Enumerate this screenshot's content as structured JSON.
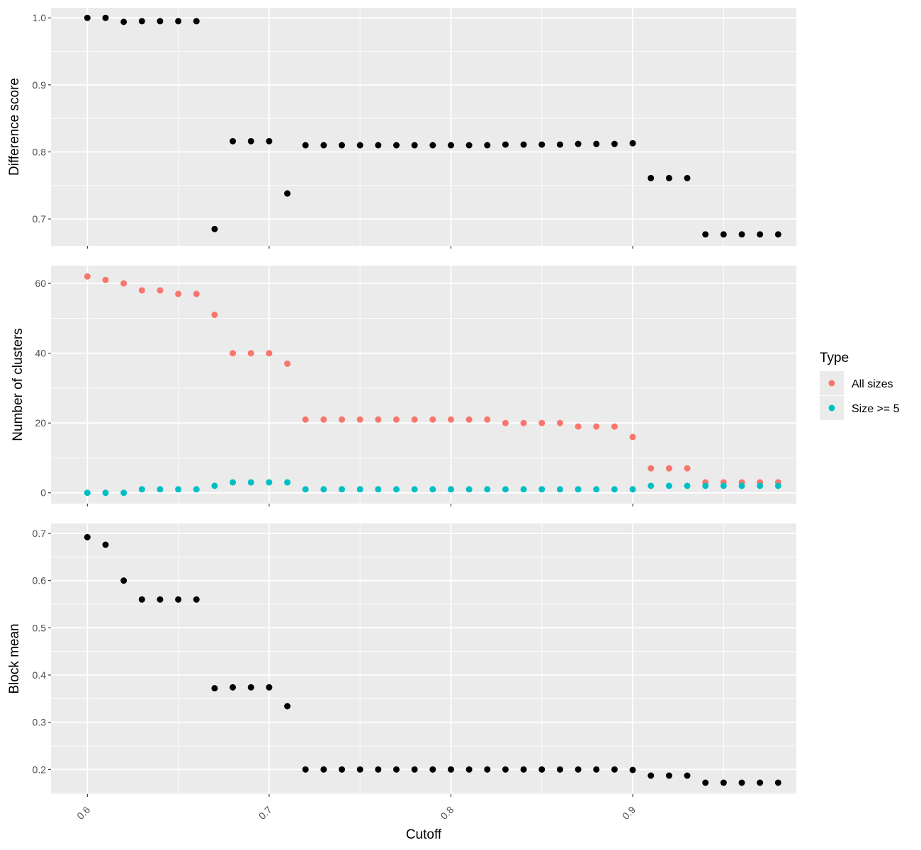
{
  "chart_data": [
    {
      "type": "scatter",
      "ylabel": "Difference score",
      "xlabel": "Cutoff",
      "xlim": [
        0.58,
        0.99
      ],
      "ylim": [
        0.66,
        1.015
      ],
      "y_ticks": [
        0.7,
        0.8,
        0.9,
        1.0
      ],
      "y_tick_labels": [
        "0.7",
        "0.8",
        "0.9",
        "1.0"
      ],
      "grid": true,
      "series": [
        {
          "color": "#000000",
          "x": [
            0.6,
            0.61,
            0.62,
            0.63,
            0.64,
            0.65,
            0.66,
            0.67,
            0.68,
            0.69,
            0.7,
            0.71,
            0.72,
            0.73,
            0.74,
            0.75,
            0.76,
            0.77,
            0.78,
            0.79,
            0.8,
            0.81,
            0.82,
            0.83,
            0.84,
            0.85,
            0.86,
            0.87,
            0.88,
            0.89,
            0.9,
            0.91,
            0.92,
            0.93,
            0.94,
            0.95,
            0.96,
            0.97,
            0.98
          ],
          "y": [
            1.0,
            1.0,
            0.994,
            0.995,
            0.995,
            0.995,
            0.995,
            0.685,
            0.816,
            0.816,
            0.816,
            0.738,
            0.81,
            0.81,
            0.81,
            0.81,
            0.81,
            0.81,
            0.81,
            0.81,
            0.81,
            0.81,
            0.81,
            0.811,
            0.811,
            0.811,
            0.811,
            0.812,
            0.812,
            0.812,
            0.813,
            0.761,
            0.761,
            0.761,
            0.677,
            0.677,
            0.677,
            0.677,
            0.677
          ]
        }
      ]
    },
    {
      "type": "scatter",
      "ylabel": "Number of clusters",
      "xlabel": "Cutoff",
      "xlim": [
        0.58,
        0.99
      ],
      "ylim": [
        -3.1,
        65.1
      ],
      "y_ticks": [
        0,
        20,
        40,
        60
      ],
      "y_tick_labels": [
        "0",
        "20",
        "40",
        "60"
      ],
      "grid": true,
      "legend": {
        "title": "Type",
        "placement": "right"
      },
      "series": [
        {
          "name": "All sizes",
          "color": "#F8766D",
          "x": [
            0.6,
            0.61,
            0.62,
            0.63,
            0.64,
            0.65,
            0.66,
            0.67,
            0.68,
            0.69,
            0.7,
            0.71,
            0.72,
            0.73,
            0.74,
            0.75,
            0.76,
            0.77,
            0.78,
            0.79,
            0.8,
            0.81,
            0.82,
            0.83,
            0.84,
            0.85,
            0.86,
            0.87,
            0.88,
            0.89,
            0.9,
            0.91,
            0.92,
            0.93,
            0.94,
            0.95,
            0.96,
            0.97,
            0.98
          ],
          "y": [
            62,
            61,
            60,
            58,
            58,
            57,
            57,
            51,
            40,
            40,
            40,
            37,
            21,
            21,
            21,
            21,
            21,
            21,
            21,
            21,
            21,
            21,
            21,
            20,
            20,
            20,
            20,
            19,
            19,
            19,
            16,
            7,
            7,
            7,
            3,
            3,
            3,
            3,
            3
          ]
        },
        {
          "name": "Size >= 5",
          "color": "#00BFC4",
          "x": [
            0.6,
            0.61,
            0.62,
            0.63,
            0.64,
            0.65,
            0.66,
            0.67,
            0.68,
            0.69,
            0.7,
            0.71,
            0.72,
            0.73,
            0.74,
            0.75,
            0.76,
            0.77,
            0.78,
            0.79,
            0.8,
            0.81,
            0.82,
            0.83,
            0.84,
            0.85,
            0.86,
            0.87,
            0.88,
            0.89,
            0.9,
            0.91,
            0.92,
            0.93,
            0.94,
            0.95,
            0.96,
            0.97,
            0.98
          ],
          "y": [
            0,
            0,
            0,
            1,
            1,
            1,
            1,
            2,
            3,
            3,
            3,
            3,
            1,
            1,
            1,
            1,
            1,
            1,
            1,
            1,
            1,
            1,
            1,
            1,
            1,
            1,
            1,
            1,
            1,
            1,
            1,
            2,
            2,
            2,
            2,
            2,
            2,
            2,
            2
          ]
        }
      ]
    },
    {
      "type": "scatter",
      "ylabel": "Block mean",
      "xlabel": "Cutoff",
      "xlim": [
        0.58,
        0.99
      ],
      "ylim": [
        0.148,
        0.721
      ],
      "y_ticks": [
        0.2,
        0.3,
        0.4,
        0.5,
        0.6,
        0.7
      ],
      "y_tick_labels": [
        "0.2",
        "0.3",
        "0.4",
        "0.5",
        "0.6",
        "0.7"
      ],
      "x_ticks": [
        0.6,
        0.7,
        0.8,
        0.9
      ],
      "x_tick_labels": [
        "0.6",
        "0.7",
        "0.8",
        "0.9"
      ],
      "grid": true,
      "series": [
        {
          "color": "#000000",
          "x": [
            0.6,
            0.61,
            0.62,
            0.63,
            0.64,
            0.65,
            0.66,
            0.67,
            0.68,
            0.69,
            0.7,
            0.71,
            0.72,
            0.73,
            0.74,
            0.75,
            0.76,
            0.77,
            0.78,
            0.79,
            0.8,
            0.81,
            0.82,
            0.83,
            0.84,
            0.85,
            0.86,
            0.87,
            0.88,
            0.89,
            0.9,
            0.91,
            0.92,
            0.93,
            0.94,
            0.95,
            0.96,
            0.97,
            0.98
          ],
          "y": [
            0.692,
            0.676,
            0.6,
            0.56,
            0.56,
            0.56,
            0.56,
            0.372,
            0.374,
            0.374,
            0.374,
            0.334,
            0.2,
            0.2,
            0.2,
            0.2,
            0.2,
            0.2,
            0.2,
            0.2,
            0.2,
            0.2,
            0.2,
            0.2,
            0.2,
            0.2,
            0.2,
            0.2,
            0.2,
            0.2,
            0.199,
            0.187,
            0.187,
            0.187,
            0.172,
            0.172,
            0.172,
            0.172,
            0.172
          ]
        }
      ]
    }
  ]
}
